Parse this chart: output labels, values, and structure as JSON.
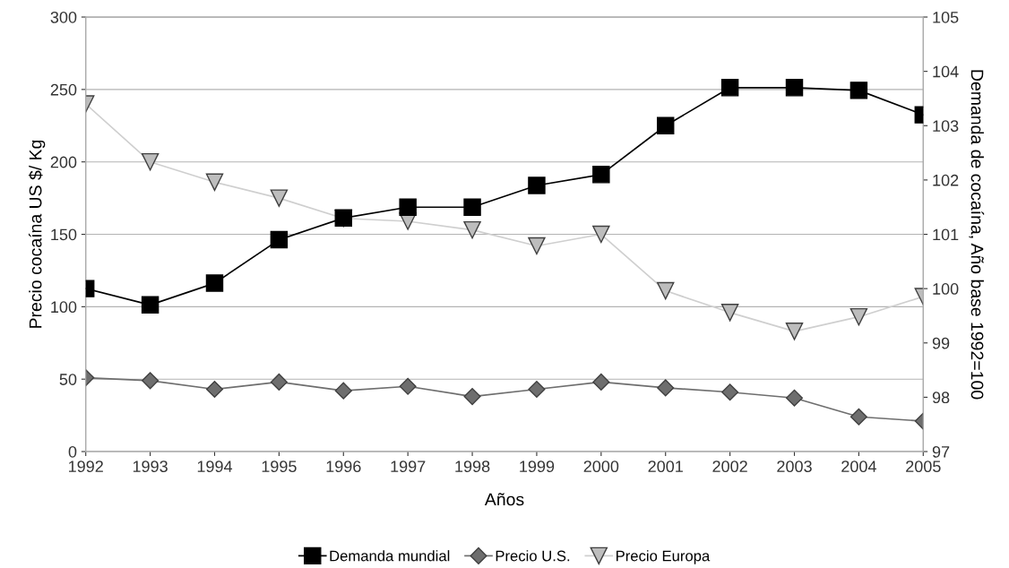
{
  "chart_data": {
    "type": "line",
    "xlabel": "Años",
    "ylabel": "Precio cocaína US $/ Kg",
    "y2label": "Demanda de cocaína, Año base 1992=100",
    "x": [
      1992,
      1993,
      1994,
      1995,
      1996,
      1997,
      1998,
      1999,
      2000,
      2001,
      2002,
      2003,
      2004,
      2005
    ],
    "xlim": [
      1992,
      2005
    ],
    "xticks": [
      1992,
      1993,
      1994,
      1995,
      1996,
      1997,
      1998,
      1999,
      2000,
      2001,
      2002,
      2003,
      2004,
      2005
    ],
    "ylim": [
      0,
      300
    ],
    "yticks": [
      0,
      50,
      100,
      150,
      200,
      250,
      300
    ],
    "y2lim": [
      97,
      105
    ],
    "y2ticks": [
      97,
      98,
      99,
      100,
      101,
      102,
      103,
      104,
      105
    ],
    "grid": "y",
    "legend": "bottom",
    "line_style": "solid",
    "series": [
      {
        "name": "Demanda mundial",
        "color": "#000000",
        "marker": "square",
        "axis": "y2",
        "values": [
          100.0,
          99.7,
          100.1,
          100.9,
          101.3,
          101.5,
          101.5,
          101.9,
          102.1,
          103.0,
          103.7,
          103.7,
          103.65,
          103.2
        ]
      },
      {
        "name": "Precio U.S.",
        "color": "#6e6e6e",
        "marker": "diamond",
        "values": [
          51,
          49,
          43,
          48,
          42,
          45,
          38,
          43,
          48,
          44,
          41,
          37,
          24,
          21
        ]
      },
      {
        "name": "Precio Europa",
        "color": "#bdbdbd",
        "marker": "triangle",
        "values": [
          240,
          200,
          186,
          175,
          161,
          159,
          153,
          142,
          150,
          111,
          96,
          83,
          93,
          107
        ]
      }
    ]
  }
}
